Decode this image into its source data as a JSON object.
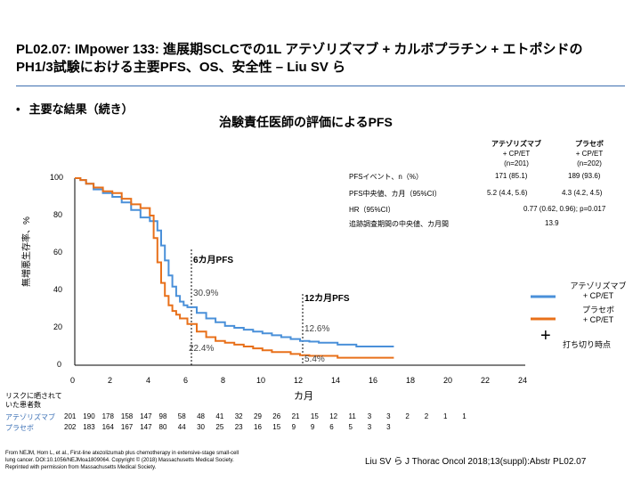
{
  "slide": {
    "title_line1": "PL02.07: IMpower 133: 進展期SCLCでの1L アテゾリズマブ + カルボプラチン + エトポシドの",
    "title_line2": "PH1/3試験における主要PFS、OS、安全性 – Liu SV ら",
    "bullet": "主要な結果（続き）",
    "subheading": "治験責任医師の評価によるPFS"
  },
  "table": {
    "col1_head": "アテゾリズマブ",
    "col1_sub1": "+ CP/ET",
    "col1_sub2": "(n=201)",
    "col2_head": "プラセボ",
    "col2_sub1": "+ CP/ET",
    "col2_sub2": "(n=202)",
    "rows": [
      {
        "label": "PFSイベント、n（%）",
        "v1": "171 (85.1)",
        "v2": "189 (93.6)"
      },
      {
        "label": "PFS中央値、カ月（95%CI）",
        "v1": "5.2 (4.4, 5.6)",
        "v2": "4.3 (4.2, 4.5)"
      },
      {
        "label": "HR（95%CI）",
        "v": "0.77 (0.62, 0.96); p=0.017"
      },
      {
        "label": "追跡調査期間の中央値、カ月間",
        "v": "13.9"
      }
    ]
  },
  "annotations": {
    "six_month": "6カ月PFS",
    "six_atezo": "30.9%",
    "six_placebo": "22.4%",
    "twelve_month": "12カ月PFS",
    "twelve_atezo": "12.6%",
    "twelve_placebo": "5.4%"
  },
  "legend": {
    "atezo_line1": "アテゾリズマブ",
    "atezo_line2": "+ CP/ET",
    "placebo_line1": "プラセボ",
    "placebo_line2": "+ CP/ET",
    "censor_symbol": "+",
    "censor_label": "打ち切り時点",
    "atezo_color": "#4a90d9",
    "placebo_color": "#e8701a"
  },
  "risk_table": {
    "label_line1": "リスクに晒されて",
    "label_line2": "いた患者数",
    "atezo_label": "アテゾリズマブ",
    "placebo_label": "プラセボ",
    "atezo": [
      "201",
      "190",
      "178",
      "158",
      "147",
      "98",
      "58",
      "48",
      "41",
      "32",
      "29",
      "26",
      "21",
      "15",
      "12",
      "11",
      "3",
      "3",
      "2",
      "2",
      "1",
      "1"
    ],
    "placebo": [
      "202",
      "183",
      "164",
      "167",
      "147",
      "80",
      "44",
      "30",
      "25",
      "23",
      "16",
      "15",
      "9",
      "9",
      "6",
      "5",
      "3",
      "3"
    ]
  },
  "footnote": {
    "line1": "From NEJM, Horn L, et al., First-line atezolizumab plus chemotherapy in extensive-stage small-cell",
    "line2": "lung cancer. DOI:10.1056/NEJMoa1809064. Copyright © (2018) Massachusetts Medical Society.",
    "line3": "Reprinted with permission from Massachusetts Medical Society.",
    "citation": "Liu SV ら J Thorac Oncol 2018;13(suppl):Abstr PL02.07"
  },
  "chart_data": {
    "type": "line",
    "title": "治験責任医師の評価によるPFS",
    "xlabel": "カ月",
    "ylabel": "無増悪生存率、%",
    "xlim": [
      0,
      24
    ],
    "ylim": [
      0,
      100
    ],
    "x_ticks": [
      "0",
      "2",
      "4",
      "6",
      "8",
      "10",
      "12",
      "14",
      "16",
      "18",
      "20",
      "22",
      "24"
    ],
    "y_ticks": [
      "0",
      "20",
      "40",
      "60",
      "80",
      "100"
    ],
    "series": [
      {
        "name": "アテゾリズマブ + CP/ET",
        "color": "#4a90d9",
        "x": [
          0,
          0.3,
          0.6,
          1,
          1.5,
          2,
          2.5,
          3,
          3.5,
          4,
          4.4,
          4.6,
          4.8,
          5.0,
          5.2,
          5.4,
          5.6,
          5.8,
          6,
          6.5,
          7,
          7.5,
          8,
          8.5,
          9,
          9.5,
          10,
          10.5,
          11,
          11.5,
          12,
          12.5,
          13,
          13.5,
          14,
          14.5,
          15,
          15.5,
          16,
          16.5,
          17
        ],
        "y": [
          100,
          99,
          97,
          94,
          92,
          90,
          87,
          83,
          79,
          77,
          72,
          64,
          56,
          48,
          42,
          37,
          34,
          32,
          31,
          28,
          25,
          23,
          21,
          20,
          19,
          18,
          17,
          16,
          15,
          14,
          13,
          12.6,
          12,
          12,
          11,
          11,
          10,
          10,
          10,
          10,
          10
        ]
      },
      {
        "name": "プラセボ + CP/ET",
        "color": "#e8701a",
        "x": [
          0,
          0.3,
          0.6,
          1,
          1.5,
          2,
          2.5,
          3,
          3.5,
          4,
          4.2,
          4.4,
          4.6,
          4.8,
          5,
          5.2,
          5.4,
          5.6,
          6,
          6.5,
          7,
          7.5,
          8,
          8.5,
          9,
          9.5,
          10,
          10.5,
          11,
          11.5,
          12,
          12.5,
          13,
          14,
          15,
          16,
          17
        ],
        "y": [
          100,
          99,
          97,
          95,
          93,
          92,
          89,
          86,
          84,
          80,
          68,
          55,
          44,
          37,
          32,
          29,
          27,
          25,
          22,
          18,
          15,
          13,
          12,
          11,
          10,
          9,
          8,
          7,
          7,
          6,
          5.4,
          5,
          5,
          4,
          4,
          4,
          4
        ]
      }
    ]
  }
}
